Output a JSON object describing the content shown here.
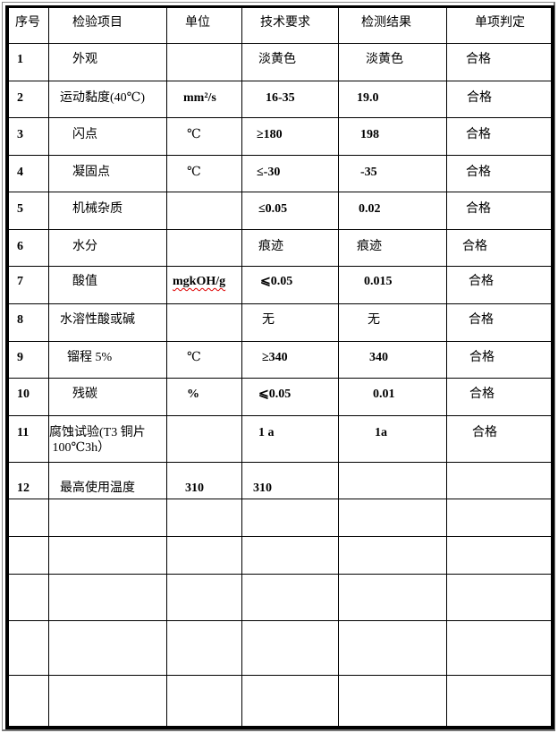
{
  "table": {
    "headers": [
      "序号",
      "检验项目",
      "单位",
      "技术要求",
      "检测结果",
      "单项判定"
    ],
    "rows": [
      [
        "1",
        "外观",
        "",
        "淡黄色",
        "淡黄色",
        "合格"
      ],
      [
        "2",
        "运动黏度(40℃)",
        "mm²/s",
        "16-35",
        "19.0",
        "合格"
      ],
      [
        "3",
        "闪点",
        "℃",
        "≥180",
        "198",
        "合格"
      ],
      [
        "4",
        "凝固点",
        "℃",
        "≤-30",
        "-35",
        "合格"
      ],
      [
        "5",
        "机械杂质",
        "",
        "≤0.05",
        "0.02",
        "合格"
      ],
      [
        "6",
        "水分",
        "",
        "痕迹",
        "痕迹",
        "合格"
      ],
      [
        "7",
        "酸值",
        "mgkOH/g",
        "⩽0.05",
        "0.015",
        "合格"
      ],
      [
        "8",
        "水溶性酸或碱",
        "",
        "无",
        "无",
        "合格"
      ],
      [
        "9",
        "镏程 5%",
        "℃",
        "≥340",
        "340",
        "合格"
      ],
      [
        "10",
        "残碳",
        "%",
        "⩽0.05",
        "0.01",
        "合格"
      ],
      [
        "11",
        "腐蚀试验(T3 铜片\n 100℃3h）",
        "",
        "1 a",
        "1a",
        "合格"
      ],
      [
        "12",
        "最高使用温度",
        "310",
        "310",
        "",
        ""
      ],
      [
        "",
        "",
        "",
        "",
        "",
        ""
      ],
      [
        "",
        "",
        "",
        "",
        "",
        ""
      ],
      [
        "",
        "",
        "",
        "",
        "",
        ""
      ],
      [
        "",
        "",
        "",
        "",
        "",
        ""
      ],
      [
        "",
        "",
        "",
        "",
        "",
        ""
      ]
    ]
  }
}
